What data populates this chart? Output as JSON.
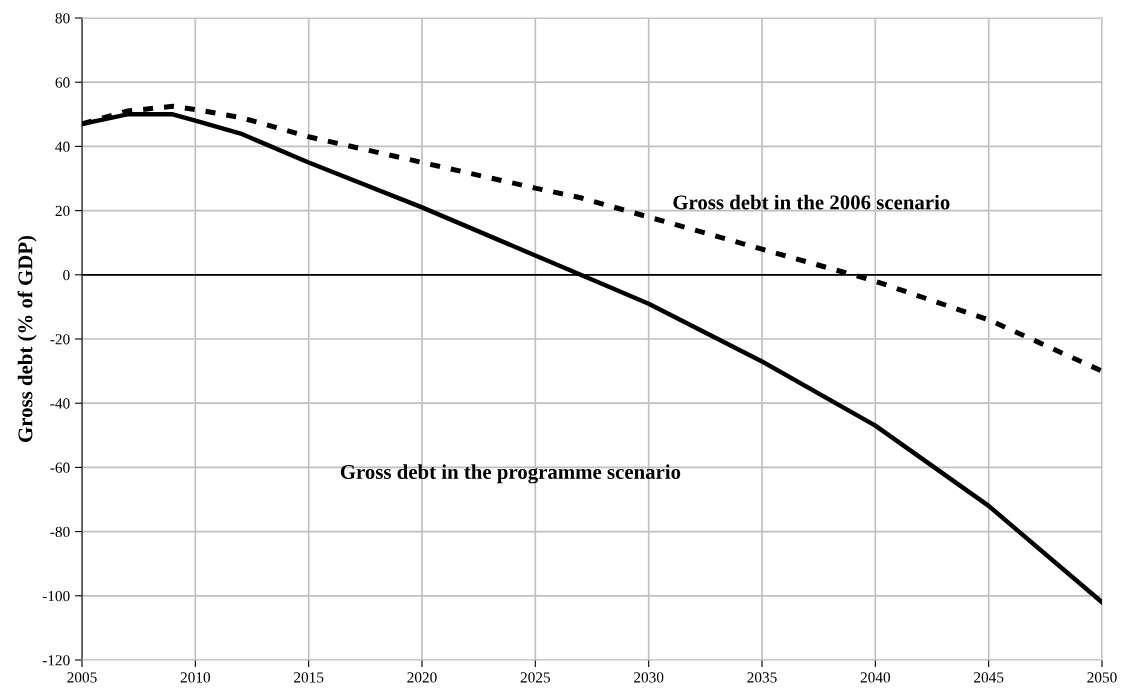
{
  "chart_data": {
    "type": "line",
    "ylabel": "Gross debt (% of GDP)",
    "x": [
      2005,
      2007,
      2009,
      2010,
      2012,
      2015,
      2020,
      2025,
      2027,
      2030,
      2035,
      2040,
      2045,
      2050
    ],
    "series": [
      {
        "color": "#000000",
        "line_style": "solid",
        "values": [
          47,
          50,
          50,
          48,
          44,
          35,
          21,
          6,
          0,
          -9,
          -27,
          -47,
          -72,
          -102
        ]
      },
      {
        "color": "#000000",
        "line_style": "dashed",
        "values": [
          47,
          51,
          52.5,
          51.5,
          49,
          43,
          35,
          27,
          24,
          18,
          8,
          -2,
          -14,
          -30
        ]
      }
    ],
    "annotations": [
      "Gross debt in the 2006 scenario",
      "Gross debt in the programme scenario"
    ],
    "xlim": [
      2005,
      2050
    ],
    "xticks": [
      2005,
      2010,
      2015,
      2020,
      2025,
      2030,
      2035,
      2040,
      2045,
      2050
    ],
    "ylim": [
      -120,
      80
    ],
    "yticks": [
      -120,
      -100,
      -80,
      -60,
      -40,
      -20,
      0,
      20,
      40,
      60,
      80
    ],
    "ref_lines": [
      {
        "axis": "y",
        "value": 0,
        "color": "#000000"
      }
    ],
    "grid": true,
    "legend": false,
    "marker": "none"
  }
}
